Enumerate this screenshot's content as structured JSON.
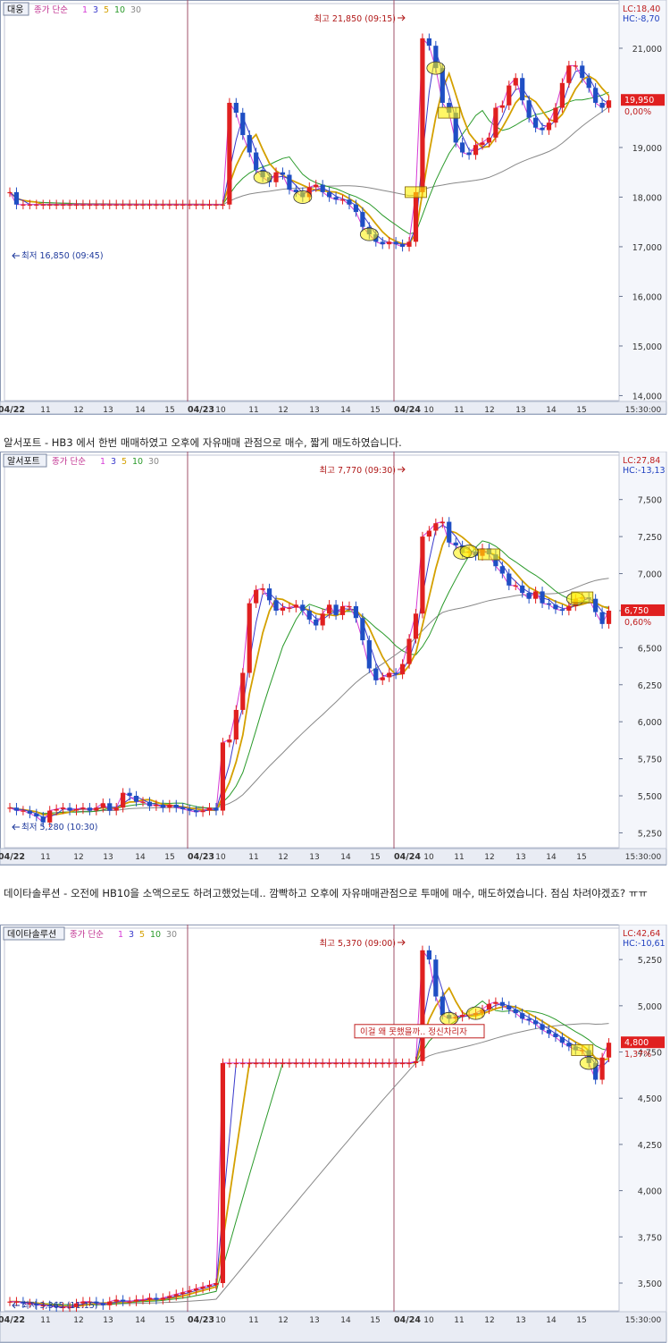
{
  "charts": [
    {
      "stock_name": "대웅",
      "legend": {
        "prefix": "종가 단순",
        "periods": [
          {
            "label": "1",
            "color": "#d63ad6"
          },
          {
            "label": "3",
            "color": "#3a3acc"
          },
          {
            "label": "5",
            "color": "#d4a000"
          },
          {
            "label": "10",
            "color": "#2a9a2a"
          },
          {
            "label": "30",
            "color": "#888888"
          }
        ]
      },
      "lc": "LC:18,40",
      "hc": "HC:-8,70",
      "high_label": "최고 21,850 (09:15)",
      "low_label": "최저 16,850 (09:45)",
      "price_tag": "19,950",
      "pct_tag": "0,00%"
    },
    {
      "stock_name": "알서포트",
      "legend": {
        "prefix": "종가 단순",
        "periods": [
          {
            "label": "1",
            "color": "#d63ad6"
          },
          {
            "label": "3",
            "color": "#3a3acc"
          },
          {
            "label": "5",
            "color": "#d4a000"
          },
          {
            "label": "10",
            "color": "#2a9a2a"
          },
          {
            "label": "30",
            "color": "#888888"
          }
        ]
      },
      "lc": "LC:27,84",
      "hc": "HC:-13,13",
      "high_label": "최고 7,770 (09:30)",
      "low_label": "최저 5,280 (10:30)",
      "price_tag": "6,750",
      "pct_tag": "0,60%"
    },
    {
      "stock_name": "데이타솔루션",
      "legend": {
        "prefix": "종가 단순",
        "periods": [
          {
            "label": "1",
            "color": "#d63ad6"
          },
          {
            "label": "3",
            "color": "#3a3acc"
          },
          {
            "label": "5",
            "color": "#d4a000"
          },
          {
            "label": "10",
            "color": "#2a9a2a"
          },
          {
            "label": "30",
            "color": "#888888"
          }
        ]
      },
      "lc": "LC:42,64",
      "hc": "HC:-10,61",
      "high_label": "최고 5,370 (09:00)",
      "low_label": "최저 3,365 (11:15)",
      "price_tag": "4,800",
      "pct_tag": "1,37%",
      "annotation": "이걸 왜 못했을까.. 정신차리자"
    }
  ],
  "captions": {
    "c1": "알서포트 - HB3 에서 한번 매매하였고 오후에 자유매매 관점으로 매수, 짧게 매도하였습니다.",
    "c2": "데이타솔루션 - 오전에 HB10을 소액으로도 하려고했었는데.. 깜빡하고 오후에 자유매매관점으로 투매에 매수, 매도하였습니다. 점심 차려야겠죠? ㅠㅠ"
  },
  "chart_data": [
    {
      "type": "candlestick",
      "title": "대웅",
      "x_ticks": [
        "04/22",
        "11",
        "12",
        "13",
        "14",
        "15",
        "04/23",
        "10",
        "11",
        "12",
        "13",
        "14",
        "15",
        "04/24",
        "10",
        "11",
        "12",
        "13",
        "14",
        "15",
        "15:30:00"
      ],
      "y_ticks": [
        "14,000",
        "15,000",
        "16,000",
        "17,000",
        "18,000",
        "19,000",
        "21,000"
      ],
      "ylim": [
        13900,
        21900
      ],
      "closes": [
        18100,
        17850,
        17850,
        17850,
        17850,
        17850,
        17850,
        17850,
        17850,
        17850,
        17850,
        17850,
        17850,
        17850,
        17850,
        17850,
        17850,
        17850,
        17850,
        17850,
        17850,
        17850,
        17850,
        17850,
        17850,
        17850,
        17850,
        17850,
        17850,
        17850,
        17850,
        17850,
        17850,
        19900,
        19700,
        19250,
        18900,
        18550,
        18400,
        18300,
        18500,
        18450,
        18150,
        18100,
        18000,
        18200,
        18250,
        18100,
        18000,
        17950,
        17950,
        17850,
        17700,
        17400,
        17250,
        17100,
        17050,
        17100,
        17050,
        17000,
        17100,
        18100,
        21200,
        21050,
        20600,
        19900,
        19700,
        19100,
        18900,
        18850,
        19050,
        19100,
        19200,
        19800,
        19850,
        20250,
        20400,
        19950,
        19600,
        19400,
        19350,
        19500,
        19800,
        20300,
        20650,
        20650,
        20400,
        20200,
        19900,
        19800,
        19950
      ],
      "ma_lines": [
        "1",
        "3",
        "5",
        "10",
        "30"
      ]
    },
    {
      "type": "candlestick",
      "title": "알서포트",
      "x_ticks": [
        "04/22",
        "11",
        "12",
        "13",
        "14",
        "15",
        "04/23",
        "10",
        "11",
        "12",
        "13",
        "14",
        "15",
        "04/24",
        "10",
        "11",
        "12",
        "13",
        "14",
        "15",
        "15:30:00"
      ],
      "y_ticks": [
        "5,250",
        "5,500",
        "5,750",
        "6,000",
        "6,250",
        "6,500",
        "6,750",
        "7,000",
        "7,250",
        "7,500"
      ],
      "ylim": [
        5150,
        7800
      ],
      "closes": [
        5420,
        5400,
        5400,
        5380,
        5360,
        5320,
        5400,
        5410,
        5420,
        5400,
        5410,
        5420,
        5400,
        5420,
        5450,
        5400,
        5420,
        5520,
        5500,
        5460,
        5460,
        5430,
        5440,
        5420,
        5440,
        5420,
        5410,
        5400,
        5390,
        5400,
        5420,
        5400,
        5860,
        5880,
        6080,
        6330,
        6800,
        6890,
        6900,
        6820,
        6750,
        6770,
        6770,
        6790,
        6750,
        6690,
        6650,
        6730,
        6790,
        6720,
        6780,
        6780,
        6700,
        6550,
        6360,
        6280,
        6300,
        6330,
        6320,
        6390,
        6560,
        6730,
        7250,
        7290,
        7340,
        7350,
        7210,
        7190,
        7140,
        7150,
        7120,
        7170,
        7130,
        7050,
        7000,
        6920,
        6920,
        6870,
        6830,
        6880,
        6800,
        6790,
        6760,
        6750,
        6780,
        6830,
        6840,
        6830,
        6740,
        6660,
        6750
      ],
      "ma_lines": [
        "1",
        "3",
        "5",
        "10",
        "30"
      ]
    },
    {
      "type": "candlestick",
      "title": "데이타솔루션",
      "x_ticks": [
        "04/22",
        "11",
        "12",
        "13",
        "14",
        "15",
        "04/23",
        "10",
        "11",
        "12",
        "13",
        "14",
        "15",
        "04/24",
        "10",
        "11",
        "12",
        "13",
        "14",
        "15",
        "15:30:00"
      ],
      "y_ticks": [
        "3,500",
        "3,750",
        "4,000",
        "4,250",
        "4,500",
        "4,750",
        "5,000",
        "5,250"
      ],
      "ylim": [
        3350,
        5420
      ],
      "closes": [
        3400,
        3400,
        3390,
        3390,
        3380,
        3380,
        3375,
        3370,
        3370,
        3370,
        3390,
        3400,
        3400,
        3390,
        3380,
        3400,
        3410,
        3400,
        3400,
        3410,
        3410,
        3420,
        3410,
        3420,
        3430,
        3440,
        3450,
        3460,
        3470,
        3480,
        3490,
        3500,
        4690,
        4690,
        4690,
        4690,
        4690,
        4690,
        4690,
        4690,
        4690,
        4690,
        4690,
        4690,
        4690,
        4690,
        4690,
        4690,
        4690,
        4690,
        4690,
        4690,
        4690,
        4690,
        4690,
        4690,
        4690,
        4690,
        4690,
        4690,
        4690,
        4700,
        5300,
        5250,
        5050,
        4950,
        4930,
        4940,
        4950,
        4950,
        4960,
        4980,
        5010,
        5020,
        5000,
        4980,
        4960,
        4930,
        4920,
        4900,
        4870,
        4850,
        4830,
        4800,
        4780,
        4760,
        4760,
        4690,
        4600,
        4720,
        4800
      ],
      "ma_lines": [
        "1",
        "3",
        "5",
        "10",
        "30"
      ]
    }
  ]
}
